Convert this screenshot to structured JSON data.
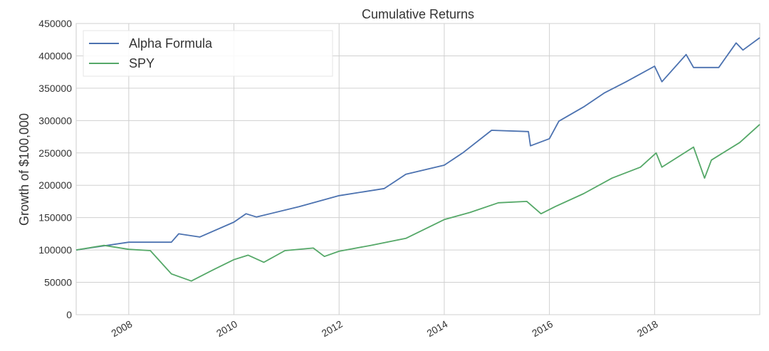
{
  "chart_data": {
    "type": "line",
    "title": "Cumulative Returns",
    "ylabel": "Growth of $100,000",
    "xlim": [
      2007,
      2020
    ],
    "xticks": [
      2008,
      2010,
      2012,
      2014,
      2016,
      2018
    ],
    "ylim": [
      0,
      450000
    ],
    "yticks": [
      0,
      50000,
      100000,
      150000,
      200000,
      250000,
      300000,
      350000,
      400000,
      450000
    ],
    "grid": true,
    "legend": "upper left",
    "series": [
      {
        "name": "Alpha Formula",
        "color": "#4c72b0",
        "x": [
          2007.0,
          2008.0,
          2008.81,
          2008.95,
          2009.35,
          2010.0,
          2010.23,
          2010.43,
          2011.24,
          2012.0,
          2012.86,
          2013.27,
          2014.0,
          2014.35,
          2014.9,
          2015.6,
          2015.64,
          2016.0,
          2016.18,
          2016.65,
          2017.05,
          2017.46,
          2018.0,
          2018.14,
          2018.6,
          2018.74,
          2019.22,
          2019.55,
          2019.68,
          2020.0
        ],
        "values": [
          100000,
          112000,
          112000,
          125000,
          120000,
          143000,
          156000,
          151000,
          167000,
          184000,
          195000,
          217000,
          231000,
          250000,
          285000,
          283000,
          261000,
          272000,
          299000,
          321000,
          343000,
          360000,
          384000,
          360000,
          402000,
          382000,
          382000,
          420000,
          409000,
          428000
        ]
      },
      {
        "name": "SPY",
        "color": "#55a868",
        "x": [
          2007.0,
          2007.53,
          2008.0,
          2008.41,
          2008.81,
          2009.19,
          2009.62,
          2010.0,
          2010.27,
          2010.57,
          2010.97,
          2011.51,
          2011.72,
          2012.0,
          2012.6,
          2013.27,
          2014.0,
          2014.49,
          2015.03,
          2015.57,
          2015.84,
          2016.11,
          2016.65,
          2017.19,
          2017.73,
          2018.03,
          2018.14,
          2018.74,
          2018.95,
          2019.08,
          2019.62,
          2020.0
        ],
        "values": [
          100000,
          107000,
          101000,
          99000,
          63000,
          52000,
          70000,
          85000,
          92000,
          81000,
          99000,
          103000,
          90000,
          98000,
          107000,
          118000,
          147000,
          158000,
          173000,
          175000,
          156000,
          167000,
          187000,
          211000,
          228000,
          250000,
          228000,
          259000,
          211000,
          239000,
          266000,
          294000
        ]
      }
    ]
  }
}
